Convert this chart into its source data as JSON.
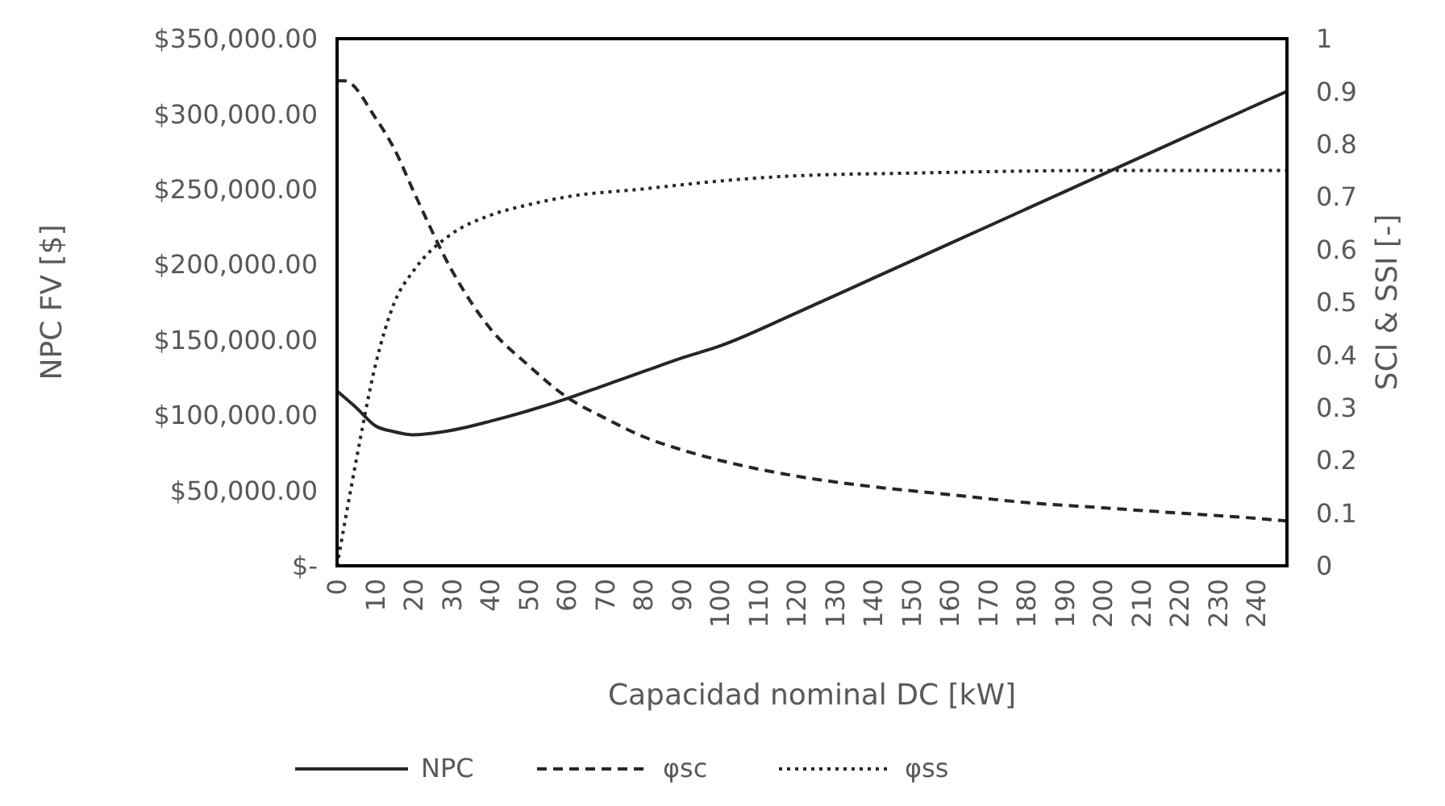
{
  "chart_data": {
    "type": "line",
    "xlabel": "Capacidad nominal DC [kW]",
    "ylabel": "NPC FV [$]",
    "y2label": "SCI & SSI [-]",
    "xlim": [
      0,
      248
    ],
    "xticks": [
      0,
      10,
      20,
      30,
      40,
      50,
      60,
      70,
      80,
      90,
      100,
      110,
      120,
      130,
      140,
      150,
      160,
      170,
      180,
      190,
      200,
      210,
      220,
      230,
      240
    ],
    "ylim": [
      0,
      350000
    ],
    "yticks": [
      {
        "value": 0,
        "label": "$-"
      },
      {
        "value": 50000,
        "label": "$50,000.00"
      },
      {
        "value": 100000,
        "label": "$100,000.00"
      },
      {
        "value": 150000,
        "label": "$150,000.00"
      },
      {
        "value": 200000,
        "label": "$200,000.00"
      },
      {
        "value": 250000,
        "label": "$250,000.00"
      },
      {
        "value": 300000,
        "label": "$300,000.00"
      },
      {
        "value": 350000,
        "label": "$350,000.00"
      }
    ],
    "y2lim": [
      0,
      1
    ],
    "y2ticks": [
      0,
      0.1,
      0.2,
      0.3,
      0.4,
      0.5,
      0.6,
      0.7,
      0.8,
      0.9,
      1
    ],
    "grid": false,
    "legend": "bottom",
    "series": [
      {
        "name": "NPC",
        "color": "#262626",
        "line_style": "solid",
        "x": [
          0,
          5,
          10,
          15,
          20,
          25,
          30,
          40,
          50,
          60,
          70,
          80,
          90,
          100,
          120,
          140,
          160,
          180,
          200,
          220,
          240,
          248
        ],
        "values": [
          116000,
          105000,
          93000,
          89000,
          87000,
          88000,
          90000,
          96000,
          103000,
          111000,
          120000,
          129000,
          138000,
          146000,
          168000,
          191000,
          214000,
          237000,
          260000,
          283000,
          306000,
          315000
        ]
      },
      {
        "name": "φsc",
        "color": "#262626",
        "line_style": "dashed",
        "axis": "y2",
        "x": [
          0,
          2,
          10,
          15,
          20,
          30,
          40,
          50,
          60,
          70,
          80,
          90,
          100,
          120,
          140,
          160,
          180,
          200,
          220,
          240,
          248
        ],
        "values": [
          0.92,
          0.92,
          0.85,
          0.79,
          0.71,
          0.56,
          0.45,
          0.38,
          0.32,
          0.28,
          0.245,
          0.22,
          0.2,
          0.17,
          0.15,
          0.135,
          0.12,
          0.11,
          0.1,
          0.09,
          0.085
        ]
      },
      {
        "name": "φss",
        "color": "#262626",
        "line_style": "dotted",
        "axis": "y2",
        "x": [
          0,
          5,
          10,
          15,
          20,
          30,
          40,
          50,
          60,
          80,
          100,
          120,
          150,
          200,
          248
        ],
        "values": [
          0,
          0.2,
          0.38,
          0.5,
          0.56,
          0.63,
          0.665,
          0.685,
          0.7,
          0.715,
          0.73,
          0.74,
          0.745,
          0.75,
          0.75
        ]
      }
    ]
  }
}
